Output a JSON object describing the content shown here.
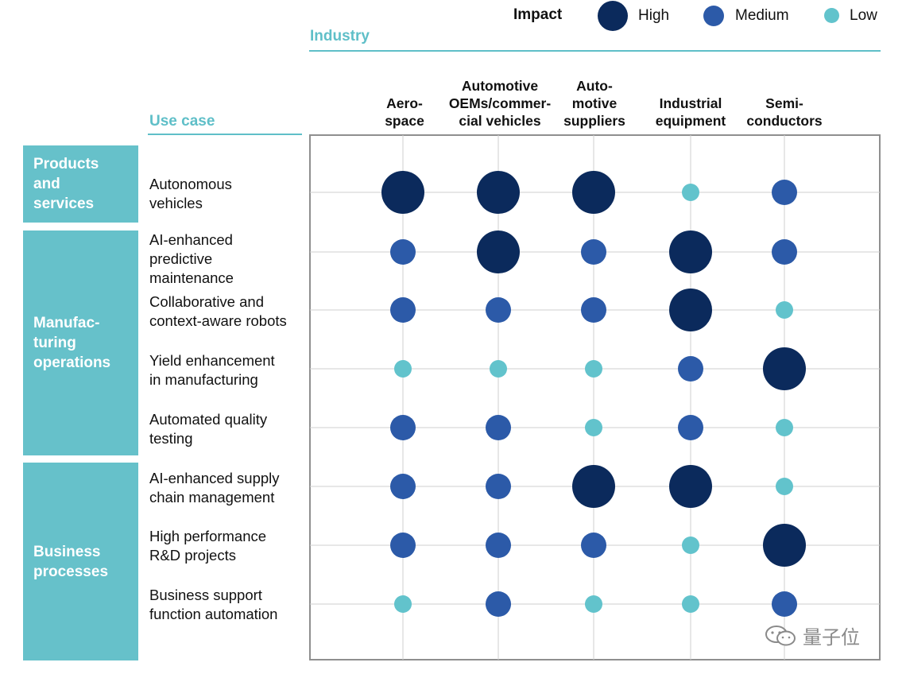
{
  "legend": {
    "title": "Impact",
    "items": [
      {
        "label": "High",
        "color": "#0b2a5c"
      },
      {
        "label": "Medium",
        "color": "#2c5aa8"
      },
      {
        "label": "Low",
        "color": "#62c3cc"
      }
    ]
  },
  "headers": {
    "industry": "Industry",
    "use_case": "Use case"
  },
  "groups": [
    {
      "label": "Products\nand\nservices"
    },
    {
      "label": "Manufac-\nturing\noperations"
    },
    {
      "label": "Business\nprocesses"
    }
  ],
  "watermark": "量子位",
  "chart_data": {
    "type": "matrix-bubble",
    "columns": [
      "Aero-\nspace",
      "Automotive\nOEMs/commer-\ncial vehicles",
      "Auto-\nmotive\nsuppliers",
      "Industrial\nequipment",
      "Semi-\nconductors"
    ],
    "rows": [
      {
        "label": "Autonomous\nvehicles",
        "group": "Products and services",
        "impact": [
          "High",
          "High",
          "High",
          "Low",
          "Medium"
        ]
      },
      {
        "label": "AI-enhanced\npredictive\nmaintenance",
        "group": "Manufacturing operations",
        "impact": [
          "Medium",
          "High",
          "Medium",
          "High",
          "Medium"
        ]
      },
      {
        "label": "Collaborative and\ncontext-aware robots",
        "group": "Manufacturing operations",
        "impact": [
          "Medium",
          "Medium",
          "Medium",
          "High",
          "Low"
        ]
      },
      {
        "label": "Yield enhancement\nin manufacturing",
        "group": "Manufacturing operations",
        "impact": [
          "Low",
          "Low",
          "Low",
          "Medium",
          "High"
        ]
      },
      {
        "label": "Automated quality\ntesting",
        "group": "Manufacturing operations",
        "impact": [
          "Medium",
          "Medium",
          "Low",
          "Medium",
          "Low"
        ]
      },
      {
        "label": "AI-enhanced supply\nchain management",
        "group": "Business processes",
        "impact": [
          "Medium",
          "Medium",
          "High",
          "High",
          "Low"
        ]
      },
      {
        "label": "High performance\nR&D projects",
        "group": "Business processes",
        "impact": [
          "Medium",
          "Medium",
          "Medium",
          "Low",
          "High"
        ]
      },
      {
        "label": "Business support\nfunction automation",
        "group": "Business processes",
        "impact": [
          "Low",
          "Medium",
          "Low",
          "Low",
          "Medium"
        ]
      }
    ],
    "impact_levels": [
      "High",
      "Medium",
      "Low"
    ]
  }
}
